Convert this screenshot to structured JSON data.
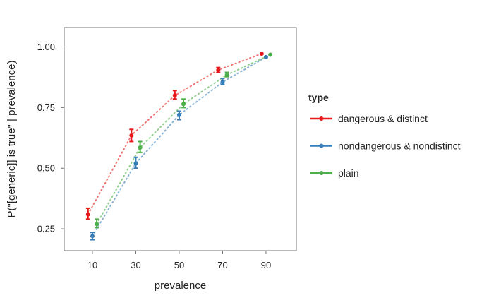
{
  "chart_data": {
    "type": "line",
    "title": "",
    "xlabel": "prevalence",
    "ylabel": "P(\"[generic]] is true\" | prevalence)",
    "x_ticks": [
      10,
      30,
      50,
      70,
      90
    ],
    "y_ticks": [
      "0.25",
      "0.50",
      "0.75",
      "1.00"
    ],
    "xlim": [
      -3,
      104
    ],
    "ylim": [
      0.16,
      1.08
    ],
    "grid": false,
    "legend": {
      "title": "type",
      "position": "right"
    },
    "series": [
      {
        "name": "dangerous & distinct",
        "color": "#e41a1c",
        "points": [
          {
            "x": 8,
            "y": 0.31,
            "lo": 0.29,
            "hi": 0.335
          },
          {
            "x": 28,
            "y": 0.635,
            "lo": 0.61,
            "hi": 0.66
          },
          {
            "x": 48,
            "y": 0.8,
            "lo": 0.785,
            "hi": 0.82
          },
          {
            "x": 68,
            "y": 0.905,
            "lo": 0.895,
            "hi": 0.915
          },
          {
            "x": 88,
            "y": 0.972,
            "lo": 0.972,
            "hi": 0.972
          }
        ]
      },
      {
        "name": "nondangerous & nondistinct",
        "color": "#377eb8",
        "points": [
          {
            "x": 10,
            "y": 0.22,
            "lo": 0.205,
            "hi": 0.235
          },
          {
            "x": 30,
            "y": 0.52,
            "lo": 0.5,
            "hi": 0.545
          },
          {
            "x": 50,
            "y": 0.72,
            "lo": 0.7,
            "hi": 0.735
          },
          {
            "x": 70,
            "y": 0.855,
            "lo": 0.845,
            "hi": 0.87
          },
          {
            "x": 90,
            "y": 0.958,
            "lo": 0.958,
            "hi": 0.958
          }
        ]
      },
      {
        "name": "plain",
        "color": "#4daf4a",
        "points": [
          {
            "x": 12,
            "y": 0.27,
            "lo": 0.255,
            "hi": 0.29
          },
          {
            "x": 32,
            "y": 0.585,
            "lo": 0.565,
            "hi": 0.61
          },
          {
            "x": 52,
            "y": 0.765,
            "lo": 0.75,
            "hi": 0.785
          },
          {
            "x": 72,
            "y": 0.885,
            "lo": 0.877,
            "hi": 0.895
          },
          {
            "x": 92,
            "y": 0.968,
            "lo": 0.968,
            "hi": 0.968
          }
        ]
      }
    ]
  }
}
